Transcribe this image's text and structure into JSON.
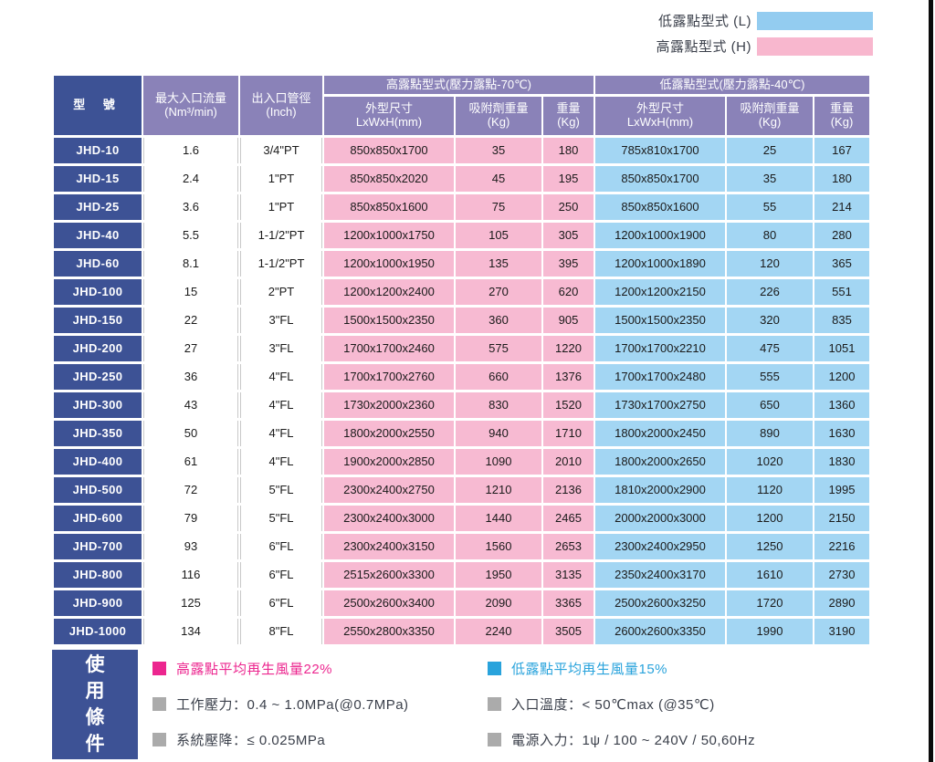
{
  "legend": {
    "items": [
      {
        "label": "低露點型式 (L)",
        "color": "#93ccf0"
      },
      {
        "label": "高露點型式 (H)",
        "color": "#f8b7ce"
      }
    ]
  },
  "table": {
    "header": {
      "model": "型 號",
      "flow": {
        "line1": "最大入口流量",
        "line2": "(Nm³/min)"
      },
      "pipe": {
        "line1": "出入口管徑",
        "line2": "(Inch)"
      },
      "groups": [
        {
          "title": "高露點型式(壓力露點-70℃)"
        },
        {
          "title": "低露點型式(壓力露點-40℃)"
        }
      ],
      "sub": {
        "dim": {
          "line1": "外型尺寸",
          "line2": "LxWxH(mm)"
        },
        "ads": {
          "line1": "吸附劑重量",
          "line2": "(Kg)"
        },
        "wt": {
          "line1": "重量",
          "line2": "(Kg)"
        }
      }
    },
    "rows": [
      [
        "JHD-10",
        "1.6",
        "3/4\"PT",
        "850x850x1700",
        "35",
        "180",
        "785x810x1700",
        "25",
        "167"
      ],
      [
        "JHD-15",
        "2.4",
        "1\"PT",
        "850x850x2020",
        "45",
        "195",
        "850x850x1700",
        "35",
        "180"
      ],
      [
        "JHD-25",
        "3.6",
        "1\"PT",
        "850x850x1600",
        "75",
        "250",
        "850x850x1600",
        "55",
        "214"
      ],
      [
        "JHD-40",
        "5.5",
        "1-1/2\"PT",
        "1200x1000x1750",
        "105",
        "305",
        "1200x1000x1900",
        "80",
        "280"
      ],
      [
        "JHD-60",
        "8.1",
        "1-1/2\"PT",
        "1200x1000x1950",
        "135",
        "395",
        "1200x1000x1890",
        "120",
        "365"
      ],
      [
        "JHD-100",
        "15",
        "2\"PT",
        "1200x1200x2400",
        "270",
        "620",
        "1200x1200x2150",
        "226",
        "551"
      ],
      [
        "JHD-150",
        "22",
        "3\"FL",
        "1500x1500x2350",
        "360",
        "905",
        "1500x1500x2350",
        "320",
        "835"
      ],
      [
        "JHD-200",
        "27",
        "3\"FL",
        "1700x1700x2460",
        "575",
        "1220",
        "1700x1700x2210",
        "475",
        "1051"
      ],
      [
        "JHD-250",
        "36",
        "4\"FL",
        "1700x1700x2760",
        "660",
        "1376",
        "1700x1700x2480",
        "555",
        "1200"
      ],
      [
        "JHD-300",
        "43",
        "4\"FL",
        "1730x2000x2360",
        "830",
        "1520",
        "1730x1700x2750",
        "650",
        "1360"
      ],
      [
        "JHD-350",
        "50",
        "4\"FL",
        "1800x2000x2550",
        "940",
        "1710",
        "1800x2000x2450",
        "890",
        "1630"
      ],
      [
        "JHD-400",
        "61",
        "4\"FL",
        "1900x2000x2850",
        "1090",
        "2010",
        "1800x2000x2650",
        "1020",
        "1830"
      ],
      [
        "JHD-500",
        "72",
        "5\"FL",
        "2300x2400x2750",
        "1210",
        "2136",
        "1810x2000x2900",
        "1120",
        "1995"
      ],
      [
        "JHD-600",
        "79",
        "5\"FL",
        "2300x2400x3000",
        "1440",
        "2465",
        "2000x2000x3000",
        "1200",
        "2150"
      ],
      [
        "JHD-700",
        "93",
        "6\"FL",
        "2300x2400x3150",
        "1560",
        "2653",
        "2300x2400x2950",
        "1250",
        "2216"
      ],
      [
        "JHD-800",
        "116",
        "6\"FL",
        "2515x2600x3300",
        "1950",
        "3135",
        "2350x2400x3170",
        "1610",
        "2730"
      ],
      [
        "JHD-900",
        "125",
        "6\"FL",
        "2500x2600x3400",
        "2090",
        "3365",
        "2500x2600x3250",
        "1720",
        "2890"
      ],
      [
        "JHD-1000",
        "134",
        "8\"FL",
        "2550x2800x3350",
        "2240",
        "3505",
        "2600x2600x3350",
        "1990",
        "3190"
      ]
    ]
  },
  "conditions": {
    "title": "使用條件",
    "left": [
      {
        "text": "高露點平均再生風量22%",
        "bullet": "#ec268f",
        "color": "#ec268f"
      },
      {
        "text": "工作壓力：0.4 ~ 1.0MPa(@0.7MPa)",
        "bullet": "#ababab",
        "color": "#3a3f4a"
      },
      {
        "text": "系統壓降：≤ 0.025MPa",
        "bullet": "#ababab",
        "color": "#3a3f4a"
      }
    ],
    "right": [
      {
        "text": "低露點平均再生風量15%",
        "bullet": "#29a3dc",
        "color": "#29a3dc"
      },
      {
        "text": "入口溫度：< 50℃max (@35℃)",
        "bullet": "#ababab",
        "color": "#3a3f4a"
      },
      {
        "text": "電源入力：1ψ / 100 ~ 240V / 50,60Hz",
        "bullet": "#ababab",
        "color": "#3a3f4a"
      }
    ]
  },
  "colors": {
    "dark_blue": "#3d5295",
    "header_purple": "#8a82b8",
    "pink_cell": "#f7bad2",
    "blue_cell": "#a3d6f3",
    "legend_blue": "#93ccf0",
    "legend_pink": "#f8b7ce",
    "magenta_note": "#ec268f",
    "blue_note": "#29a3dc",
    "gray_bullet": "#ababab"
  }
}
